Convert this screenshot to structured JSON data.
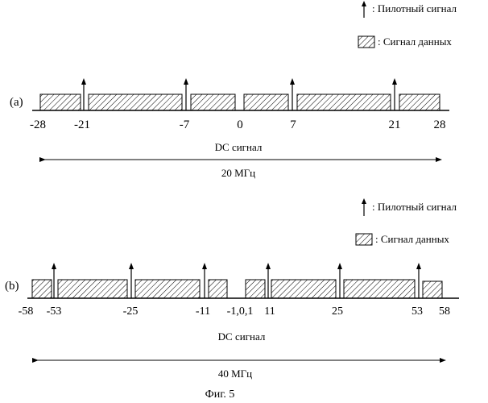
{
  "legend": {
    "pilot_label": ": Пилотный сигнал",
    "data_label": ": Сигнал данных"
  },
  "panel_a": {
    "label": "(a)",
    "ticks": [
      "-28",
      "-21",
      "-7",
      "0",
      "7",
      "21",
      "28"
    ],
    "dc_label": "DC сигнал",
    "bandwidth_label": "20 МГц"
  },
  "panel_b": {
    "label": "(b)",
    "ticks": [
      "-58",
      "-53",
      "-25",
      "-11",
      "-1,0,1",
      "11",
      "25",
      "53",
      "58"
    ],
    "dc_label": "DC сигнал",
    "bandwidth_label": "40 МГц"
  },
  "caption": "Фиг. 5"
}
